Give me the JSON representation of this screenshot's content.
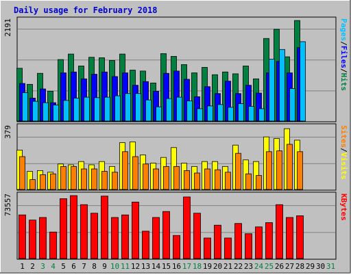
{
  "title": "Daily usage for February 2018",
  "chart_data": {
    "type": "bar",
    "title": "Daily usage for February 2018",
    "categories": [
      "1",
      "2",
      "3",
      "4",
      "5",
      "6",
      "7",
      "8",
      "9",
      "10",
      "11",
      "12",
      "13",
      "14",
      "15",
      "16",
      "17",
      "18",
      "19",
      "20",
      "21",
      "22",
      "23",
      "24",
      "25",
      "26",
      "27",
      "28",
      "29",
      "30",
      "31"
    ],
    "weekend_days": [
      3,
      4,
      10,
      11,
      17,
      18,
      24,
      25,
      31
    ],
    "colors": {
      "background": "#c0c0c0",
      "title": "#0000cc",
      "hits": "#008040",
      "files": "#0000ff",
      "pages": "#00c0ff",
      "visits": "#ffff00",
      "sites": "#ff8000",
      "kbytes": "#ff0000",
      "weekend_label": "#008040",
      "weekday_label": "#000000"
    },
    "panels": [
      {
        "id": "hits",
        "ymax_label": "2191",
        "ylim": [
          0,
          2191
        ],
        "axis_label_parts": [
          {
            "text": "Pages",
            "color": "#00c0ff"
          },
          {
            "text": "/",
            "color": "#000000"
          },
          {
            "text": "Files",
            "color": "#0000ff"
          },
          {
            "text": "/",
            "color": "#000000"
          },
          {
            "text": "Hits",
            "color": "#008040"
          }
        ],
        "series": [
          {
            "name": "Hits",
            "color": "#008040",
            "values": [
              1150,
              800,
              1040,
              650,
              1340,
              1460,
              1200,
              1390,
              1380,
              1320,
              1460,
              1110,
              1090,
              830,
              1470,
              1410,
              1230,
              1050,
              1170,
              1010,
              1070,
              1030,
              1200,
              920,
              1800,
              2000,
              1400,
              2191,
              0,
              0,
              0
            ]
          },
          {
            "name": "Files",
            "color": "#0000ff",
            "values": [
              820,
              500,
              700,
              400,
              1050,
              1070,
              920,
              1020,
              1070,
              970,
              1050,
              780,
              860,
              650,
              1040,
              1090,
              910,
              530,
              750,
              600,
              870,
              600,
              780,
              610,
              1050,
              1300,
              1050,
              1600,
              0,
              0,
              0
            ]
          },
          {
            "name": "Pages",
            "color": "#00c0ff",
            "values": [
              620,
              430,
              400,
              350,
              450,
              500,
              520,
              510,
              520,
              550,
              600,
              600,
              460,
              310,
              490,
              520,
              440,
              270,
              330,
              360,
              300,
              380,
              320,
              270,
              1350,
              1560,
              710,
              1730,
              0,
              0,
              0
            ]
          }
        ]
      },
      {
        "id": "visits",
        "ymax_label": "379",
        "ylim": [
          0,
          379
        ],
        "axis_label_parts": [
          {
            "text": "Sites",
            "color": "#ff8000"
          },
          {
            "text": "/",
            "color": "#000000"
          },
          {
            "text": "Visits",
            "color": "#ffff00"
          }
        ],
        "series": [
          {
            "name": "Visits",
            "color": "#ffff00",
            "values": [
              240,
              110,
              115,
              105,
              155,
              150,
              170,
              150,
              170,
              140,
              285,
              290,
              210,
              160,
              195,
              255,
              160,
              140,
              170,
              170,
              140,
              270,
              180,
              170,
              320,
              310,
              370,
              300,
              0,
              0,
              0
            ]
          },
          {
            "name": "Sites",
            "color": "#ff8000",
            "values": [
              200,
              60,
              90,
              95,
              140,
              140,
              125,
              125,
              110,
              105,
              230,
              200,
              155,
              125,
              140,
              140,
              115,
              100,
              125,
              120,
              105,
              220,
              95,
              85,
              230,
              235,
              275,
              230,
              0,
              0,
              0
            ]
          }
        ]
      },
      {
        "id": "kbytes",
        "ymax_label": "73557",
        "ylim": [
          0,
          73557
        ],
        "axis_label_parts": [
          {
            "text": "KBytes",
            "color": "#ff0000"
          }
        ],
        "series": [
          {
            "name": "KBytes",
            "color": "#ff0000",
            "values": [
              51000,
              45000,
              48000,
              31000,
              70000,
              73557,
              63000,
              53000,
              73000,
              48000,
              51000,
              66000,
              32000,
              48000,
              55000,
              27000,
              72000,
              53000,
              24000,
              39000,
              24000,
              41000,
              29000,
              37000,
              42000,
              63000,
              48000,
              50000,
              0,
              0,
              0
            ]
          }
        ]
      }
    ]
  }
}
